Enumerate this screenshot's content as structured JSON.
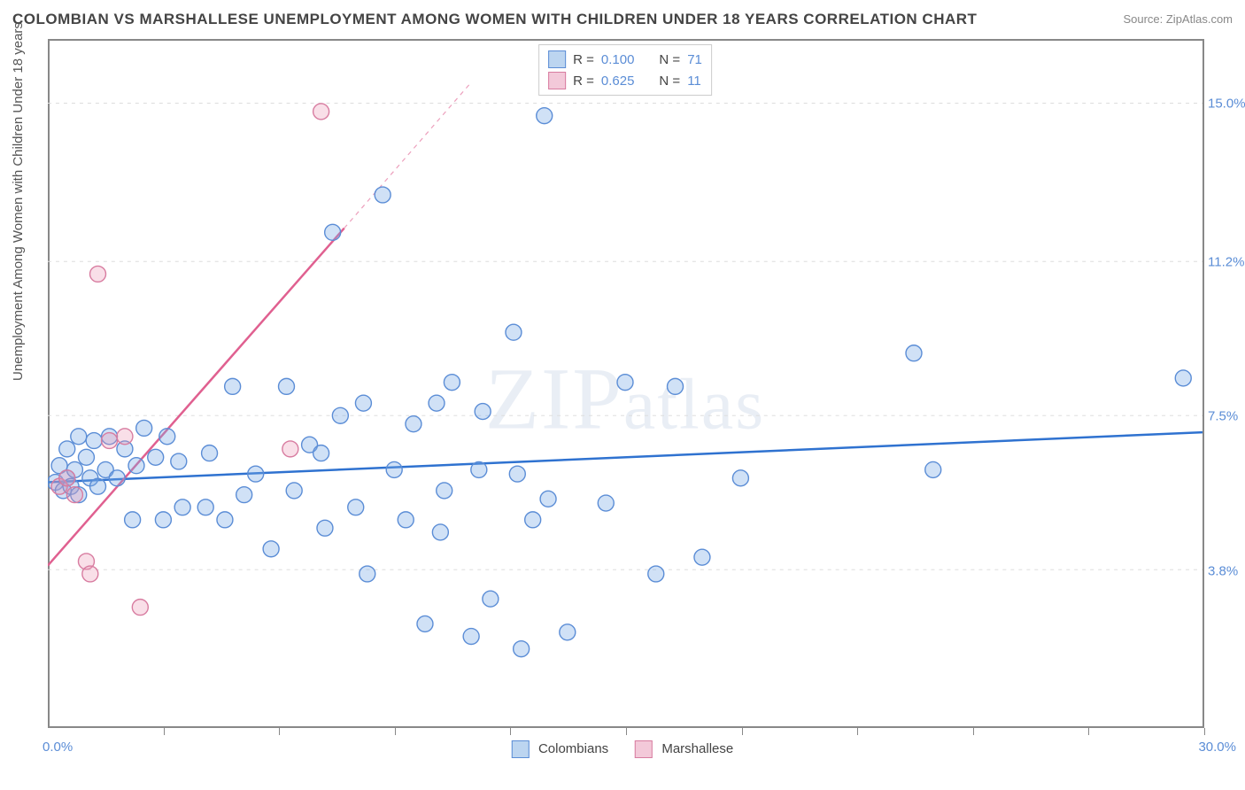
{
  "title": "COLOMBIAN VS MARSHALLESE UNEMPLOYMENT AMONG WOMEN WITH CHILDREN UNDER 18 YEARS CORRELATION CHART",
  "source": "Source: ZipAtlas.com",
  "watermark": "ZIPatlas",
  "y_axis_label": "Unemployment Among Women with Children Under 18 years",
  "chart": {
    "type": "scatter",
    "xlim": [
      0,
      30
    ],
    "ylim": [
      0,
      16.5
    ],
    "x_min_label": "0.0%",
    "x_max_label": "30.0%",
    "y_ticks": [
      3.8,
      7.5,
      11.2,
      15.0
    ],
    "y_tick_labels": [
      "3.8%",
      "7.5%",
      "11.2%",
      "15.0%"
    ],
    "x_ticks": [
      3,
      6,
      9,
      12,
      15,
      18,
      21,
      24,
      27,
      30
    ],
    "background_color": "#ffffff",
    "grid_color": "#dddddd",
    "series": [
      {
        "name": "Colombians",
        "color_fill": "rgba(120,170,230,0.35)",
        "color_stroke": "#5b8dd6",
        "swatch_fill": "#bcd5f0",
        "swatch_stroke": "#5b8dd6",
        "R": "0.100",
        "N": "71",
        "trend": {
          "x1": 0,
          "y1": 5.9,
          "x2": 30,
          "y2": 7.1,
          "color": "#2f72d0",
          "width": 2.5
        },
        "points": [
          [
            0.2,
            5.9
          ],
          [
            0.3,
            6.3
          ],
          [
            0.4,
            5.7
          ],
          [
            0.5,
            6.0
          ],
          [
            0.5,
            6.7
          ],
          [
            0.6,
            5.8
          ],
          [
            0.7,
            6.2
          ],
          [
            0.8,
            5.6
          ],
          [
            0.8,
            7.0
          ],
          [
            1.0,
            6.5
          ],
          [
            1.1,
            6.0
          ],
          [
            1.2,
            6.9
          ],
          [
            1.3,
            5.8
          ],
          [
            1.5,
            6.2
          ],
          [
            1.6,
            7.0
          ],
          [
            1.8,
            6.0
          ],
          [
            2.0,
            6.7
          ],
          [
            2.2,
            5.0
          ],
          [
            2.3,
            6.3
          ],
          [
            2.5,
            7.2
          ],
          [
            2.8,
            6.5
          ],
          [
            3.0,
            5.0
          ],
          [
            3.1,
            7.0
          ],
          [
            3.4,
            6.4
          ],
          [
            3.5,
            5.3
          ],
          [
            4.1,
            5.3
          ],
          [
            4.2,
            6.6
          ],
          [
            4.6,
            5.0
          ],
          [
            4.8,
            8.2
          ],
          [
            5.1,
            5.6
          ],
          [
            5.4,
            6.1
          ],
          [
            5.8,
            4.3
          ],
          [
            6.2,
            8.2
          ],
          [
            6.4,
            5.7
          ],
          [
            6.8,
            6.8
          ],
          [
            7.1,
            6.6
          ],
          [
            7.2,
            4.8
          ],
          [
            7.4,
            11.9
          ],
          [
            7.6,
            7.5
          ],
          [
            8.0,
            5.3
          ],
          [
            8.2,
            7.8
          ],
          [
            8.3,
            3.7
          ],
          [
            8.7,
            12.8
          ],
          [
            9.0,
            6.2
          ],
          [
            9.3,
            5.0
          ],
          [
            9.5,
            7.3
          ],
          [
            9.8,
            2.5
          ],
          [
            10.1,
            7.8
          ],
          [
            10.2,
            4.7
          ],
          [
            10.3,
            5.7
          ],
          [
            10.5,
            8.3
          ],
          [
            11.0,
            2.2
          ],
          [
            11.2,
            6.2
          ],
          [
            11.3,
            7.6
          ],
          [
            11.5,
            3.1
          ],
          [
            12.1,
            9.5
          ],
          [
            12.2,
            6.1
          ],
          [
            12.3,
            1.9
          ],
          [
            12.9,
            14.7
          ],
          [
            13.0,
            5.5
          ],
          [
            13.5,
            2.3
          ],
          [
            14.5,
            5.4
          ],
          [
            15.0,
            8.3
          ],
          [
            15.8,
            3.7
          ],
          [
            16.3,
            8.2
          ],
          [
            17.0,
            4.1
          ],
          [
            18.0,
            6.0
          ],
          [
            22.5,
            9.0
          ],
          [
            23.0,
            6.2
          ],
          [
            29.5,
            8.4
          ],
          [
            12.6,
            5.0
          ]
        ]
      },
      {
        "name": "Marshallese",
        "color_fill": "rgba(235,150,180,0.30)",
        "color_stroke": "#d87ca0",
        "swatch_fill": "#f3c9d9",
        "swatch_stroke": "#d87ca0",
        "R": "0.625",
        "N": "11",
        "trend": {
          "x1": 0,
          "y1": 3.9,
          "x2": 7.7,
          "y2": 12.0,
          "color": "#e06090",
          "width": 2.5,
          "extend_x2": 11.0,
          "extend_y2": 15.5
        },
        "points": [
          [
            0.3,
            5.8
          ],
          [
            0.5,
            6.0
          ],
          [
            0.7,
            5.6
          ],
          [
            1.0,
            4.0
          ],
          [
            1.1,
            3.7
          ],
          [
            1.3,
            10.9
          ],
          [
            1.6,
            6.9
          ],
          [
            2.0,
            7.0
          ],
          [
            2.4,
            2.9
          ],
          [
            6.3,
            6.7
          ],
          [
            7.1,
            14.8
          ]
        ]
      }
    ],
    "point_radius": 9,
    "point_stroke_width": 1.4
  },
  "legend_top": {
    "r_label": "R =",
    "n_label": "N ="
  },
  "legend_bottom": [
    "Colombians",
    "Marshallese"
  ]
}
